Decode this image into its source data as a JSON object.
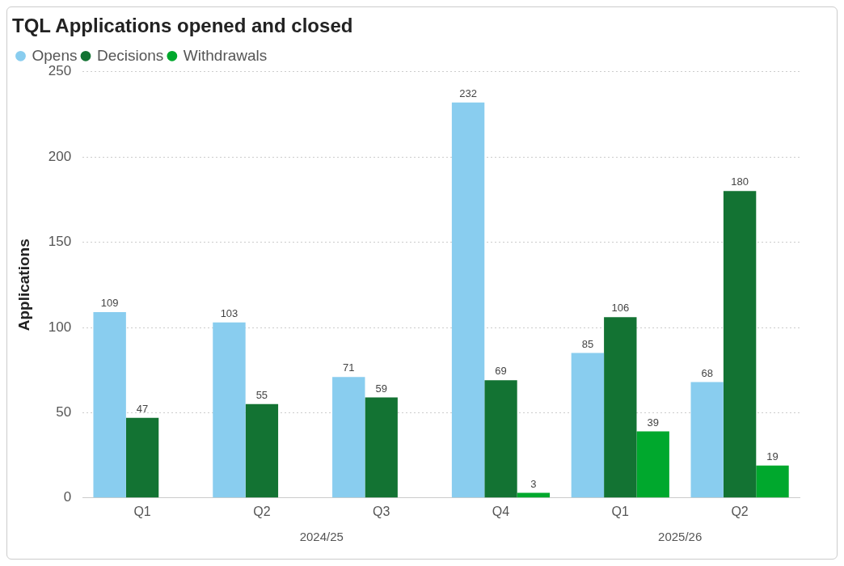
{
  "chart_data": {
    "type": "bar",
    "title": "TQL Applications opened and closed",
    "ylabel": "Applications",
    "categories": [
      "Q1",
      "Q2",
      "Q3",
      "Q4",
      "Q1",
      "Q2"
    ],
    "series": [
      {
        "name": "Opens",
        "color": "#89cdef",
        "values": [
          109,
          103,
          71,
          232,
          85,
          68
        ]
      },
      {
        "name": "Decisions",
        "color": "#137333",
        "values": [
          47,
          55,
          59,
          69,
          106,
          180
        ]
      },
      {
        "name": "Withdrawals",
        "color": "#00a82d",
        "values": [
          null,
          null,
          null,
          3,
          39,
          19
        ]
      }
    ],
    "annotations": [
      "2024/25",
      "2025/26"
    ],
    "ylim": [
      0,
      250
    ],
    "yticks": [
      0,
      50,
      100,
      150,
      200,
      250
    ],
    "grid": "y",
    "legend": "top left",
    "data_labels": true
  }
}
